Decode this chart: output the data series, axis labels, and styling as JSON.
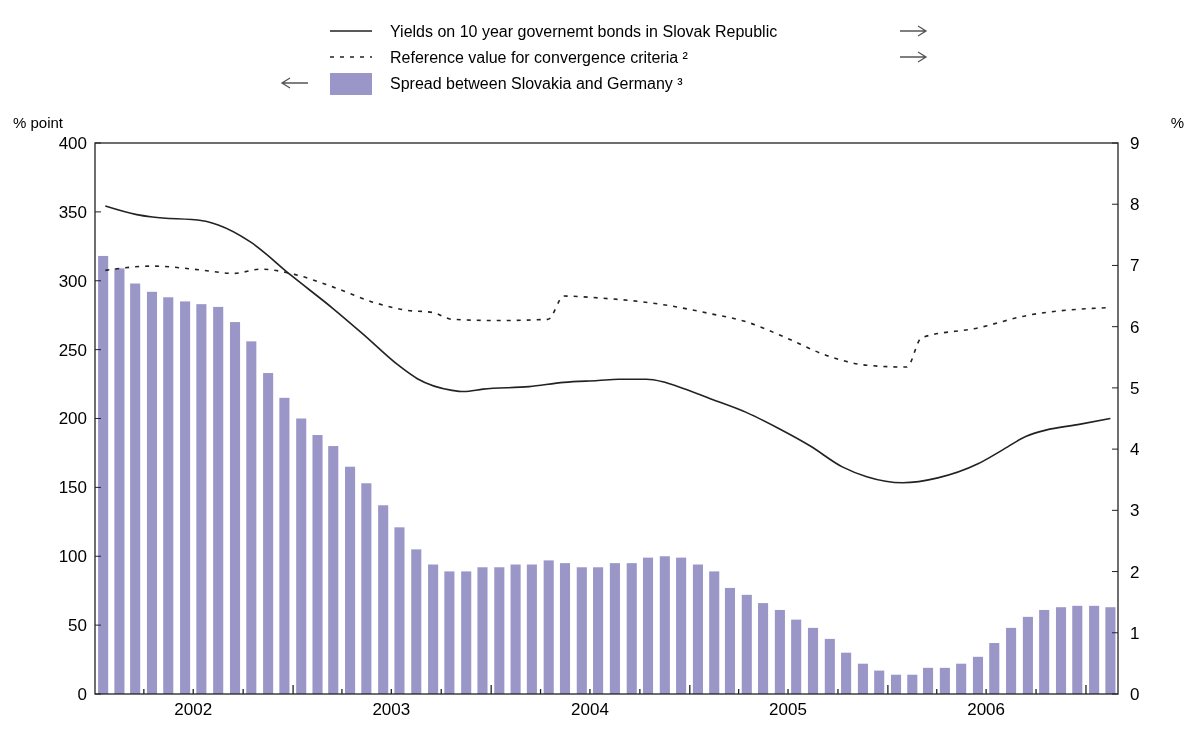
{
  "chart_data": {
    "type": "bar",
    "ylabel": "% point",
    "y2label": "%",
    "x": [
      "2002-01-16",
      "2002-02-15",
      "2002-03-16",
      "2002-04-16",
      "2002-05-16",
      "2002-06-16",
      "2002-07-16",
      "2002-08-16",
      "2002-09-16",
      "2002-10-16",
      "2002-11-16",
      "2002-12-16",
      "2003-01-16",
      "2003-02-15",
      "2003-03-16",
      "2003-04-16",
      "2003-05-16",
      "2003-06-16",
      "2003-07-16",
      "2003-08-16",
      "2003-09-16",
      "2003-10-16",
      "2003-11-16",
      "2003-12-16",
      "2004-01-16",
      "2004-02-15",
      "2004-03-16",
      "2004-04-16",
      "2004-05-16",
      "2004-06-16",
      "2004-07-16",
      "2004-08-16",
      "2004-09-16",
      "2004-10-16",
      "2004-11-16",
      "2004-12-16",
      "2005-01-16",
      "2005-02-15",
      "2005-03-16",
      "2005-04-16",
      "2005-05-16",
      "2005-06-16",
      "2005-07-16",
      "2005-08-16",
      "2005-09-16",
      "2005-10-16",
      "2005-11-16",
      "2005-12-16",
      "2006-01-16",
      "2006-02-15",
      "2006-03-16",
      "2006-04-16",
      "2006-05-16",
      "2006-06-16",
      "2006-07-16",
      "2006-08-16",
      "2006-09-16",
      "2006-10-16",
      "2006-11-16",
      "2006-12-16",
      "2007-01-16",
      "2007-02-15"
    ],
    "series": [
      {
        "name": "Yields on 10 year governemt bonds in Slovak Republic",
        "type": "line",
        "axis": "y2",
        "color": "#222222",
        "line_style": "solid",
        "x": [
          "2002-01-20",
          "2002-03-19",
          "2002-04-17",
          "2002-07-18",
          "2002-08-16",
          "2002-10-15",
          "2002-12-28",
          "2003-03-15",
          "2003-05-11",
          "2003-07-14",
          "2003-08-18",
          "2003-10-21",
          "2003-11-12",
          "2003-12-17",
          "2004-03-11",
          "2004-05-14",
          "2004-07-16",
          "2004-08-23",
          "2004-10-13",
          "2004-11-12",
          "2004-12-11",
          "2005-02-09",
          "2005-04-15",
          "2005-06-13",
          "2005-08-11",
          "2005-10-09",
          "2005-11-23",
          "2006-01-28",
          "2006-04-03",
          "2006-06-16",
          "2006-07-30",
          "2006-09-13",
          "2006-10-19",
          "2006-12-17",
          "2007-02-15"
        ],
        "values": [
          7.97,
          7.83,
          7.79,
          7.73,
          7.66,
          7.38,
          6.84,
          6.3,
          5.87,
          5.37,
          5.15,
          4.96,
          4.94,
          4.98,
          5.02,
          5.09,
          5.12,
          5.14,
          5.14,
          5.1,
          5.02,
          4.82,
          4.6,
          4.34,
          4.05,
          3.71,
          3.55,
          3.45,
          3.53,
          3.76,
          3.98,
          4.21,
          4.31,
          4.4,
          4.5
        ]
      },
      {
        "name": "Reference value for convergence criteria ²",
        "type": "line",
        "axis": "y2",
        "color": "#222222",
        "line_style": "dashed",
        "x": [
          "2002-01-20",
          "2002-04-17",
          "2002-07-11",
          "2002-09-14",
          "2002-11-02",
          "2003-01-05",
          "2003-03-15",
          "2003-06-01",
          "2003-07-28",
          "2003-09-16",
          "2003-10-21",
          "2004-01-15",
          "2004-04-15",
          "2004-05-14",
          "2004-07-16",
          "2004-11-05",
          "2005-02-09",
          "2005-04-15",
          "2005-06-27",
          "2005-09-10",
          "2005-11-23",
          "2006-02-05",
          "2006-03-04",
          "2006-06-16",
          "2006-09-13",
          "2007-02-08"
        ],
        "values": [
          6.92,
          6.99,
          6.93,
          6.87,
          6.94,
          6.85,
          6.65,
          6.39,
          6.27,
          6.23,
          6.12,
          6.1,
          6.12,
          6.5,
          6.47,
          6.37,
          6.21,
          6.08,
          5.82,
          5.53,
          5.37,
          5.34,
          5.82,
          5.98,
          6.18,
          6.31
        ]
      },
      {
        "name": "Spread between Slovakia and Germany ³",
        "type": "bar",
        "axis": "y",
        "color": "#9b96c8",
        "values": [
          318,
          309,
          298,
          292,
          288,
          285,
          283,
          281,
          270,
          256,
          233,
          215,
          200,
          188,
          180,
          165,
          153,
          137,
          121,
          105,
          94,
          89,
          89,
          92,
          92,
          94,
          94,
          97,
          95,
          92,
          92,
          95,
          95,
          99,
          100,
          99,
          94,
          89,
          77,
          72,
          66,
          61,
          54,
          48,
          40,
          30,
          22,
          17,
          14,
          14,
          19,
          19,
          22,
          27,
          37,
          48,
          56,
          61,
          63,
          64,
          64,
          63
        ]
      }
    ],
    "xlim": [
      "2002-01-01",
      "2007-03-01"
    ],
    "xticks": [
      {
        "value": "2002-04-01",
        "label": null
      },
      {
        "value": "2002-07-01",
        "label": "2002"
      },
      {
        "value": "2002-10-01",
        "label": null
      },
      {
        "value": "2003-01-01",
        "label": null
      },
      {
        "value": "2003-04-01",
        "label": null
      },
      {
        "value": "2003-07-01",
        "label": "2003"
      },
      {
        "value": "2003-10-01",
        "label": null
      },
      {
        "value": "2004-01-01",
        "label": null
      },
      {
        "value": "2004-04-01",
        "label": null
      },
      {
        "value": "2004-07-01",
        "label": "2004"
      },
      {
        "value": "2004-10-01",
        "label": null
      },
      {
        "value": "2005-01-01",
        "label": null
      },
      {
        "value": "2005-04-01",
        "label": null
      },
      {
        "value": "2005-07-01",
        "label": "2005"
      },
      {
        "value": "2005-10-01",
        "label": null
      },
      {
        "value": "2006-01-01",
        "label": null
      },
      {
        "value": "2006-04-01",
        "label": null
      },
      {
        "value": "2006-07-01",
        "label": "2006"
      },
      {
        "value": "2006-10-01",
        "label": null
      },
      {
        "value": "2007-01-01",
        "label": null
      }
    ],
    "ylim": [
      0,
      400
    ],
    "yticks": [
      0,
      50,
      100,
      150,
      200,
      250,
      300,
      350,
      400
    ],
    "y2lim": [
      0,
      9
    ],
    "y2ticks": [
      0,
      1,
      2,
      3,
      4,
      5,
      6,
      7,
      8,
      9
    ],
    "grid": false,
    "legend": "top"
  }
}
